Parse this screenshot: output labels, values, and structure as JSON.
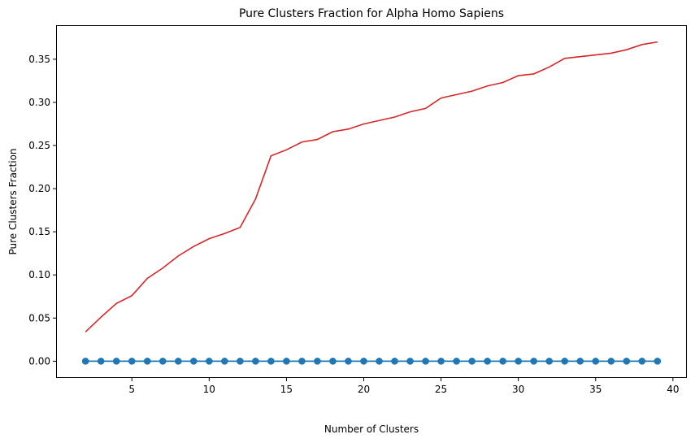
{
  "chart_data": {
    "type": "line",
    "title": "Pure Clusters Fraction for Alpha Homo Sapiens",
    "xlabel": "Number of Clusters",
    "ylabel": "Pure Clusters Fraction",
    "xlim": [
      0.15,
      40.85
    ],
    "ylim": [
      -0.0185,
      0.3885
    ],
    "xticks": [
      5,
      10,
      15,
      20,
      25,
      30,
      35,
      40
    ],
    "yticks": [
      0.0,
      0.05,
      0.1,
      0.15,
      0.2,
      0.25,
      0.3,
      0.35
    ],
    "ytick_labels": [
      "0.00",
      "0.05",
      "0.10",
      "0.15",
      "0.20",
      "0.25",
      "0.30",
      "0.35"
    ],
    "grid": false,
    "legend": "none",
    "x": [
      2,
      3,
      4,
      5,
      6,
      7,
      8,
      9,
      10,
      11,
      12,
      13,
      14,
      15,
      16,
      17,
      18,
      19,
      20,
      21,
      22,
      23,
      24,
      25,
      26,
      27,
      28,
      29,
      30,
      31,
      32,
      33,
      34,
      35,
      36,
      37,
      38,
      39
    ],
    "series": [
      {
        "color": "#d62728",
        "marker": "none",
        "values": [
          0.034,
          0.051,
          0.067,
          0.076,
          0.096,
          0.108,
          0.122,
          0.133,
          0.142,
          0.148,
          0.155,
          0.188,
          0.238,
          0.245,
          0.254,
          0.257,
          0.266,
          0.269,
          0.275,
          0.279,
          0.283,
          0.289,
          0.293,
          0.305,
          0.309,
          0.313,
          0.319,
          0.323,
          0.331,
          0.333,
          0.341,
          0.351,
          0.353,
          0.355,
          0.357,
          0.361,
          0.367,
          0.37
        ]
      },
      {
        "color": "#2ca02c",
        "marker": "none",
        "values": [
          0,
          0,
          0,
          0,
          0,
          0,
          0,
          0,
          0,
          0,
          0,
          0,
          0,
          0,
          0,
          0,
          0,
          0,
          0,
          0,
          0,
          0,
          0,
          0,
          0,
          0,
          0,
          0,
          0,
          0,
          0,
          0,
          0,
          0,
          0,
          0,
          0,
          0
        ]
      },
      {
        "color": "#1f77b4",
        "marker": "circle",
        "values": [
          0,
          0,
          0,
          0,
          0,
          0,
          0,
          0,
          0,
          0,
          0,
          0,
          0,
          0,
          0,
          0,
          0,
          0,
          0,
          0,
          0,
          0,
          0,
          0,
          0,
          0,
          0,
          0,
          0,
          0,
          0,
          0,
          0,
          0,
          0,
          0,
          0,
          0
        ]
      }
    ]
  }
}
